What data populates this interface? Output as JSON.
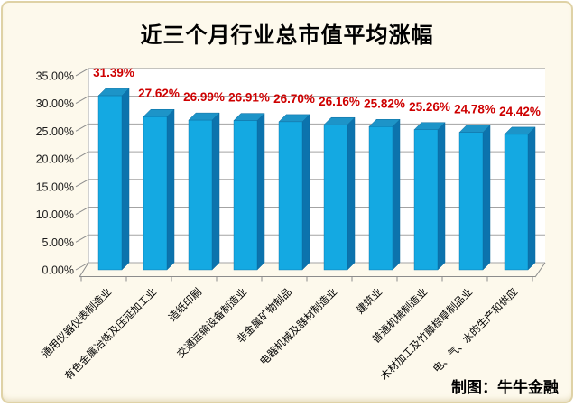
{
  "credit": "制图：牛牛金融",
  "chart_data": {
    "type": "bar",
    "style": "3d-column",
    "title": "近三个月行业总市值平均涨幅",
    "categories": [
      "通用仪器仪表制造业",
      "有色金属冶炼及压延加工业",
      "造纸印刷",
      "交通运输设备制造业",
      "非金属矿物制品",
      "电器机械及器材制造业",
      "建筑业",
      "普通机械制造业",
      "木材加工及竹藤棕草制品业",
      "电、气、水的生产和供应"
    ],
    "values": [
      31.39,
      27.62,
      26.99,
      26.91,
      26.7,
      26.16,
      25.82,
      25.26,
      24.78,
      24.42
    ],
    "value_labels": [
      "31.39%",
      "27.62%",
      "26.99%",
      "26.91%",
      "26.70%",
      "26.16%",
      "25.82%",
      "25.26%",
      "24.78%",
      "24.42%"
    ],
    "yticks": {
      "values": [
        0,
        5,
        10,
        15,
        20,
        25,
        30,
        35
      ],
      "labels": [
        "0.00%",
        "5.00%",
        "10.00%",
        "15.00%",
        "20.00%",
        "25.00%",
        "30.00%",
        "35.00%"
      ]
    },
    "ylim": [
      0,
      35
    ],
    "grid": true,
    "legend": "none",
    "colors": {
      "bar_front": "#14a9e2",
      "bar_side": "#0c73ad",
      "bar_top": "#1d94c8",
      "bar_edge": "#0a6a9e",
      "value_label": "#ce0000",
      "gridline": "#a3a3a3",
      "axis": "#8c8c8c",
      "tick_label": "#1a1a1a",
      "background": "#fdf9ec",
      "wall": "#ffffff"
    }
  }
}
